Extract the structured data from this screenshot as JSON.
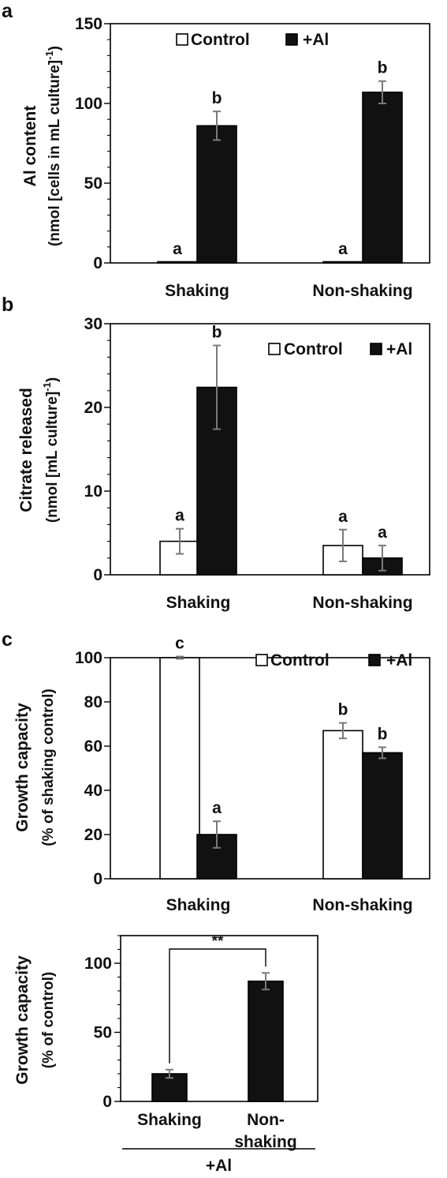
{
  "panels": [
    {
      "letter": "a",
      "chart_data": {
        "type": "bar",
        "ylabel_lines": [
          "Al content",
          "(nmol  [cells in mL culture]"
        ],
        "ylabel_sup": "-1",
        "ylabel_close": ")",
        "ylim": [
          0,
          150
        ],
        "ticks": [
          0,
          50,
          100,
          150
        ],
        "minor_step": 10,
        "categories": [
          "Shaking",
          "Non-shaking"
        ],
        "series": [
          {
            "name": "Control",
            "color": "#ffffff",
            "values": [
              0.5,
              0.5
            ],
            "errors": [
              0,
              0
            ]
          },
          {
            "name": "+Al",
            "color": "#111111",
            "values": [
              86,
              107
            ],
            "errors": [
              9,
              7
            ]
          }
        ],
        "letters": [
          [
            "a",
            "b"
          ],
          [
            "a",
            "b"
          ]
        ],
        "legend_position": "top-center",
        "grid": false
      }
    },
    {
      "letter": "b",
      "chart_data": {
        "type": "bar",
        "ylabel_lines": [
          "Citrate released",
          "(nmol [mL culture]"
        ],
        "ylabel_sup": "-1",
        "ylabel_close": ")",
        "ylim": [
          0,
          30
        ],
        "ticks": [
          0,
          10,
          20,
          30
        ],
        "minor_step": 2,
        "categories": [
          "Shaking",
          "Non-shaking"
        ],
        "series": [
          {
            "name": "Control",
            "color": "#ffffff",
            "values": [
              4.0,
              3.5
            ],
            "errors": [
              1.5,
              1.9
            ]
          },
          {
            "name": "+Al",
            "color": "#111111",
            "values": [
              22.4,
              2.0
            ],
            "errors": [
              5.0,
              1.5
            ]
          }
        ],
        "letters": [
          [
            "a",
            "b"
          ],
          [
            "a",
            "a"
          ]
        ],
        "legend_position": "top-right",
        "grid": false
      }
    },
    {
      "letter": "c",
      "chart_data": {
        "type": "bar",
        "ylabel_lines": [
          "Growth capacity",
          "(% of shaking control)"
        ],
        "ylim": [
          0,
          100
        ],
        "ticks": [
          0,
          20,
          40,
          60,
          80,
          100
        ],
        "categories": [
          "Shaking",
          "Non-shaking"
        ],
        "series": [
          {
            "name": "Control",
            "color": "#ffffff",
            "values": [
              100,
              67
            ],
            "errors": [
              0.5,
              3.5
            ]
          },
          {
            "name": "+Al",
            "color": "#111111",
            "values": [
              20,
              57
            ],
            "errors": [
              6,
              2.5
            ]
          }
        ],
        "letters": [
          [
            "c",
            "a"
          ],
          [
            "b",
            "b"
          ]
        ],
        "legend_position": "top-right",
        "grid": false
      }
    },
    {
      "letter": "",
      "chart_data": {
        "type": "bar",
        "ylabel_lines": [
          "Growth capacity",
          "(% of control)"
        ],
        "ylim": [
          0,
          120
        ],
        "ticks": [
          0,
          50,
          100
        ],
        "minor_step": 10,
        "categories": [
          [
            "Shaking"
          ],
          [
            "Non-",
            "shaking"
          ]
        ],
        "group_label": "+Al",
        "series": [
          {
            "name": "+Al",
            "color": "#111111",
            "values": [
              20,
              87
            ],
            "errors": [
              3,
              6
            ]
          }
        ],
        "significance": "**",
        "grid": false
      }
    }
  ]
}
